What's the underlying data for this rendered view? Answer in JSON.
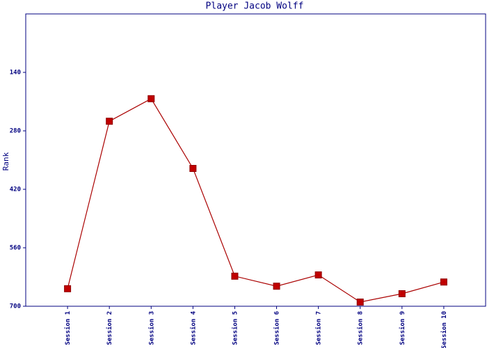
{
  "chart_data": {
    "type": "line",
    "title": "Player Jacob Wolff",
    "ylabel": "Rank",
    "categories": [
      "Session 1",
      "Session 2",
      "Session 3",
      "Session 4",
      "Session 5",
      "Session 6",
      "Session 7",
      "Session 8",
      "Session 9",
      "Session 10"
    ],
    "series": [
      {
        "name": "Rank",
        "color": "#aa0000",
        "values": [
          658,
          257,
          203,
          370,
          628,
          652,
          625,
          690,
          670,
          642
        ]
      }
    ],
    "ylim": [
      700,
      0
    ],
    "yticks": [
      140,
      280,
      420,
      560,
      700
    ],
    "yreverse": true,
    "grid": false
  }
}
